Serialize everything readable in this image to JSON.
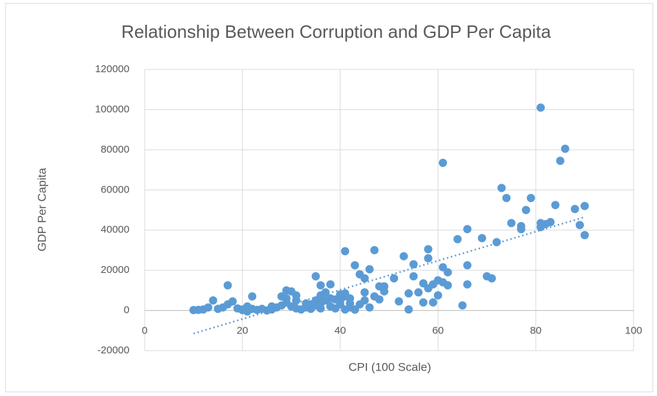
{
  "chart_data": {
    "type": "scatter",
    "title": "Relationship Between Corruption and GDP Per Capita",
    "x_label": "CPI (100 Scale)",
    "y_label": "GDP Per Capita",
    "color": "#5b9bd5",
    "grid": true,
    "xlim": [
      0,
      100
    ],
    "xticks": [
      0,
      20,
      40,
      60,
      80,
      100
    ],
    "ylim": [
      -20000,
      120000
    ],
    "yticks": [
      -20000,
      0,
      20000,
      40000,
      60000,
      80000,
      100000,
      120000
    ],
    "x": [
      81,
      86,
      85,
      61,
      73,
      74,
      79,
      84,
      90,
      88,
      78,
      89,
      90,
      75,
      77,
      77,
      81,
      82,
      83,
      81,
      66,
      64,
      69,
      72,
      70,
      71,
      66,
      66,
      65,
      58,
      58,
      53,
      55,
      55,
      57,
      58,
      59,
      60,
      59,
      57,
      56,
      54,
      54,
      52,
      51,
      49,
      49,
      48,
      48,
      47,
      46,
      43,
      44,
      45,
      41,
      42,
      41,
      62,
      62,
      61,
      61,
      60,
      47,
      46,
      45,
      45,
      44,
      40,
      39,
      38,
      36,
      35,
      37,
      36,
      35,
      34,
      33,
      32,
      31,
      30,
      29,
      28,
      29,
      30,
      27,
      26,
      25,
      24,
      22,
      21,
      20,
      19,
      18,
      17,
      17,
      16,
      15,
      14,
      13,
      12,
      11,
      10,
      23,
      28,
      31,
      33,
      36,
      38,
      39,
      40,
      41,
      42,
      43,
      36,
      37,
      38,
      40,
      43,
      31,
      29,
      26,
      20,
      21,
      22,
      34,
      35,
      41,
      42
    ],
    "values": [
      101000,
      80500,
      74500,
      73500,
      61000,
      56000,
      56000,
      52500,
      52000,
      50500,
      50000,
      42500,
      37500,
      43500,
      42000,
      40500,
      41500,
      43000,
      44000,
      43500,
      40500,
      35500,
      36000,
      34000,
      17000,
      16000,
      22500,
      13000,
      2500,
      30500,
      26000,
      27000,
      23000,
      17000,
      13500,
      11000,
      13000,
      7500,
      4000,
      4000,
      9000,
      8500,
      500,
      4500,
      16000,
      12000,
      9500,
      12000,
      5500,
      30000,
      20500,
      22500,
      18000,
      16000,
      29500,
      6000,
      8500,
      12500,
      19000,
      21500,
      14000,
      15000,
      7000,
      1500,
      9000,
      5000,
      3000,
      8000,
      5500,
      13000,
      12500,
      17000,
      9000,
      7500,
      5000,
      3000,
      1500,
      500,
      5000,
      9500,
      10000,
      7000,
      4000,
      2000,
      1500,
      500,
      0,
      800,
      7000,
      2000,
      500,
      1000,
      4500,
      12500,
      3000,
      1500,
      800,
      5000,
      1500,
      500,
      300,
      200,
      300,
      2500,
      1000,
      3500,
      1000,
      2000,
      1000,
      3000,
      500,
      1500,
      400,
      3500,
      5000,
      6000,
      5000,
      500,
      7500,
      6000,
      2000,
      200,
      -500,
      800,
      800,
      2500,
      7000,
      3500
    ],
    "trendline": {
      "x": [
        10,
        90
      ],
      "values": [
        -11500,
        46500
      ]
    }
  }
}
